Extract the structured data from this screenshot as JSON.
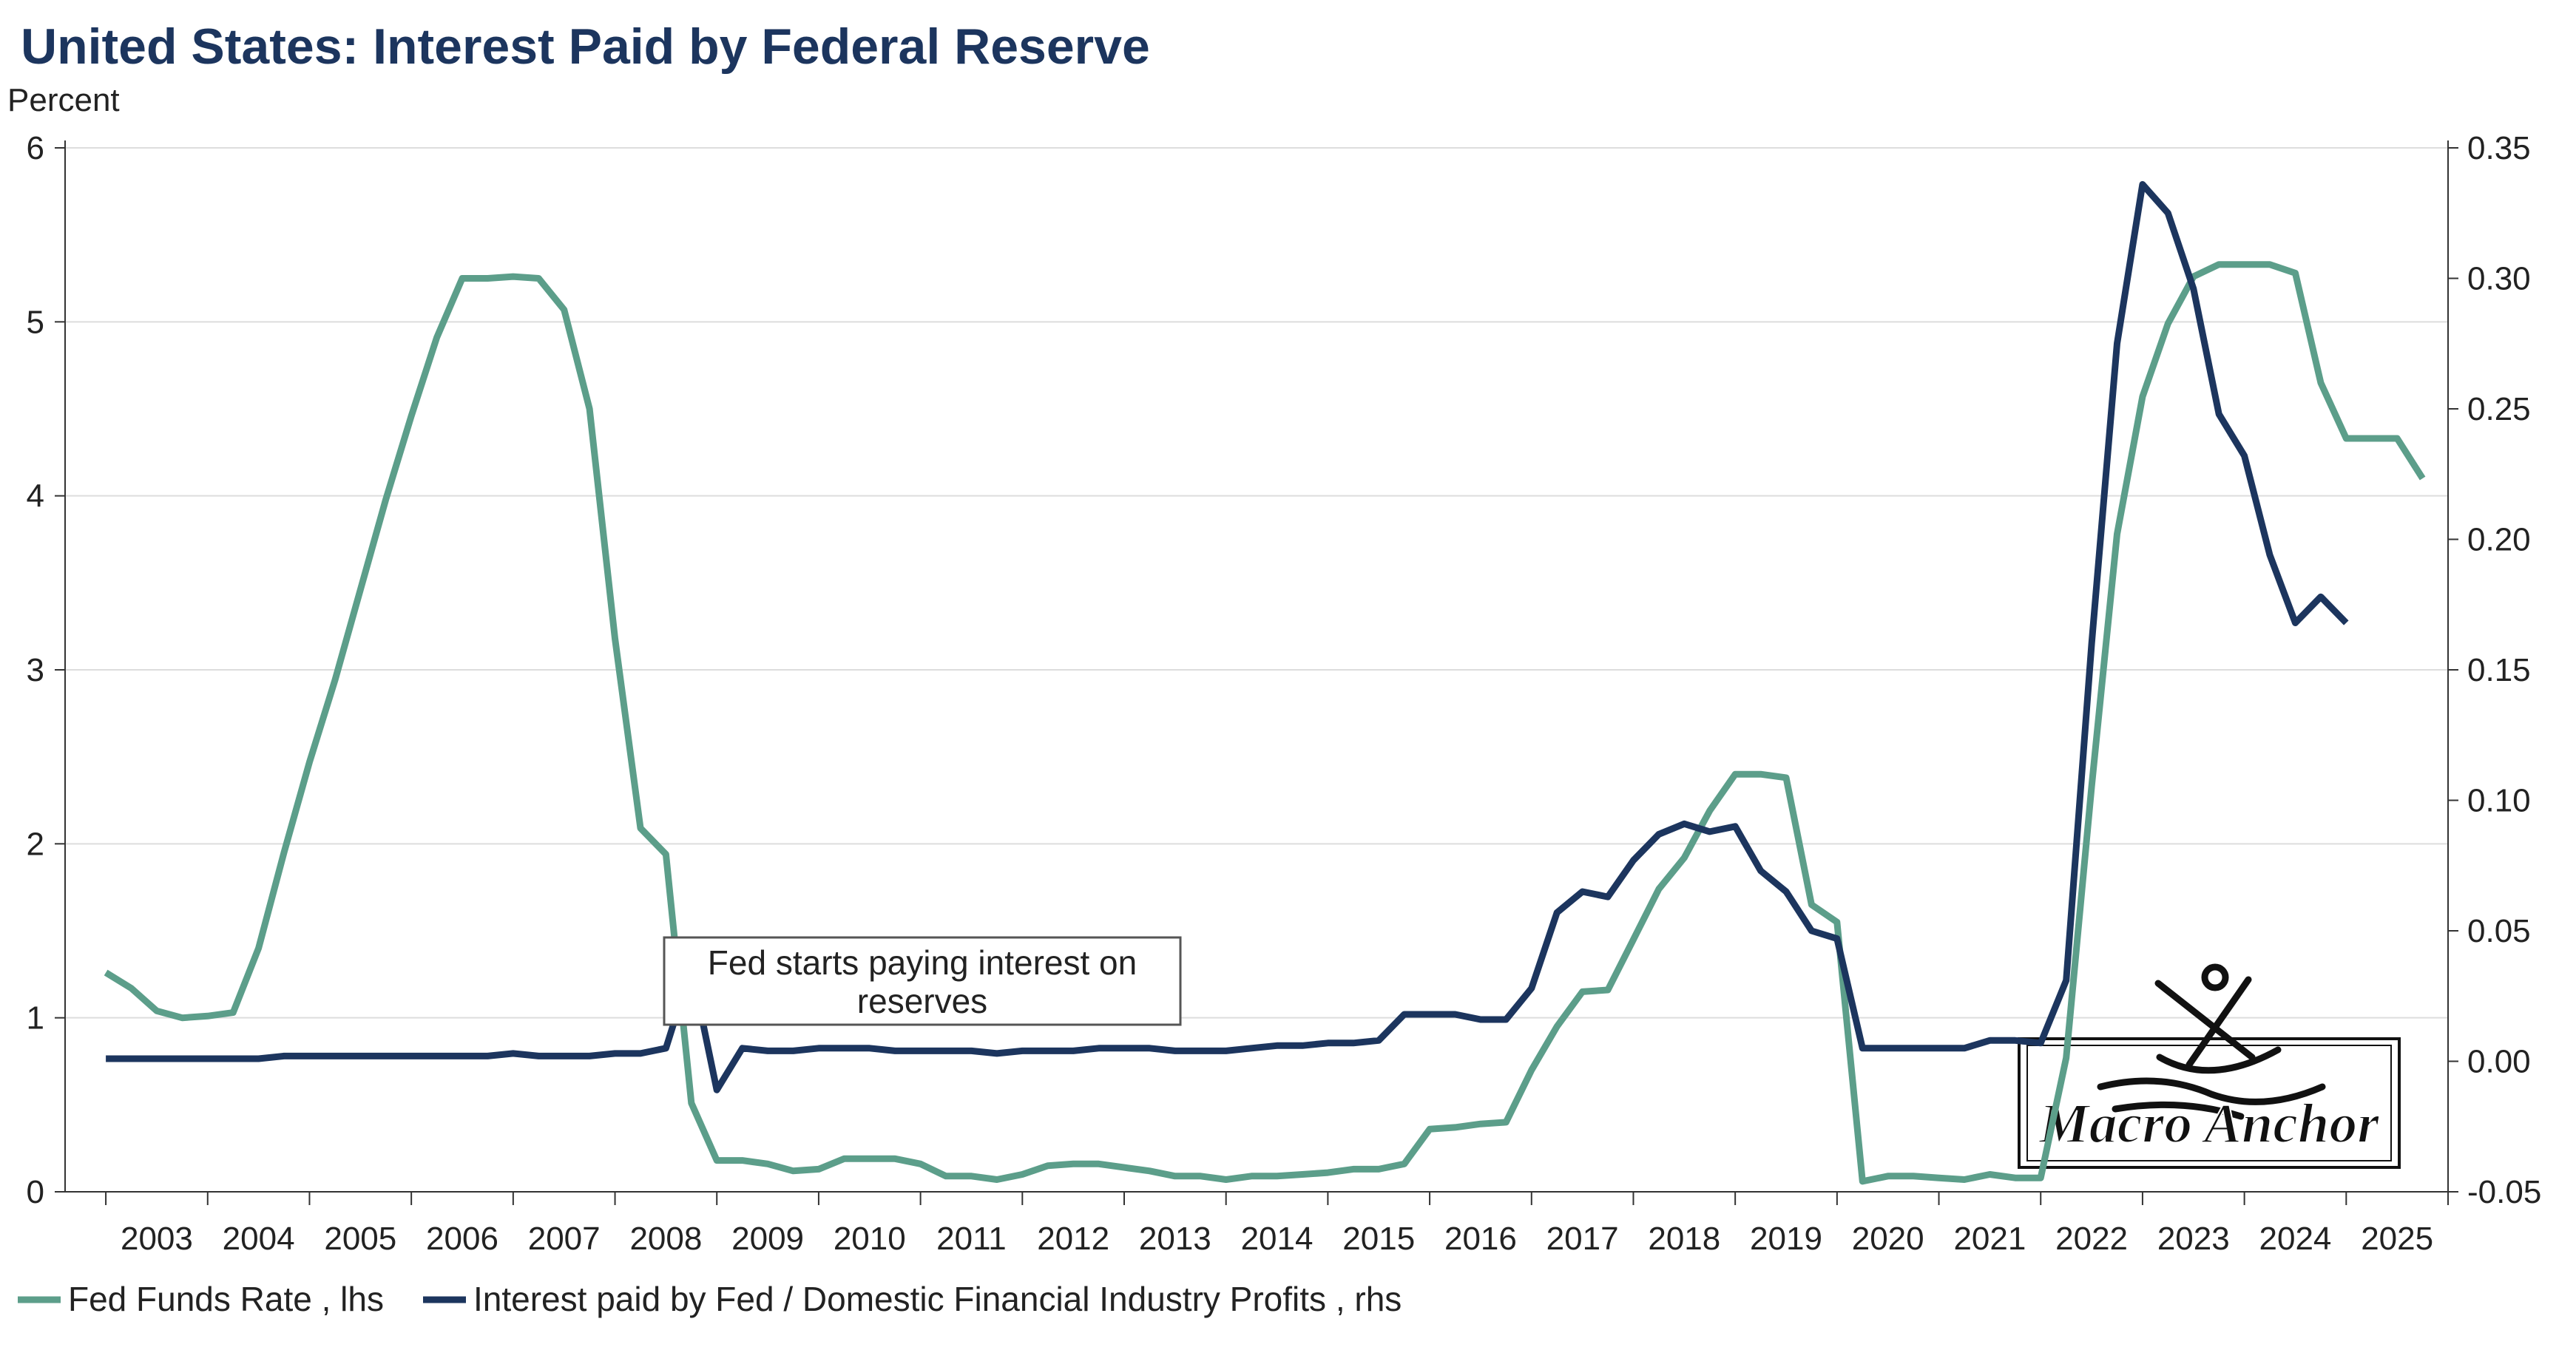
{
  "chart_data": {
    "type": "line",
    "title": "United States: Interest Paid by Federal Reserve",
    "ylabel": "Percent",
    "y_left": {
      "min": 0,
      "max": 6,
      "ticks": [
        "0",
        "1",
        "2",
        "3",
        "4",
        "5",
        "6"
      ]
    },
    "y_right": {
      "min": -0.05,
      "max": 0.35,
      "ticks": [
        "-0.05",
        "0.00",
        "0.05",
        "0.10",
        "0.15",
        "0.20",
        "0.25",
        "0.30",
        "0.35"
      ]
    },
    "x_range": [
      2002.6,
      2026.0
    ],
    "x_ticks": [
      "2003",
      "2004",
      "2005",
      "2006",
      "2007",
      "2008",
      "2009",
      "2010",
      "2011",
      "2012",
      "2013",
      "2014",
      "2015",
      "2016",
      "2017",
      "2018",
      "2019",
      "2020",
      "2021",
      "2022",
      "2023",
      "2024",
      "2025"
    ],
    "annotation": {
      "text_line1": "Fed starts paying interest on",
      "text_line2": "reserves"
    },
    "watermark": "Macro Anchor",
    "grid": "horizontal",
    "legend_position": "bottom-left",
    "series": [
      {
        "name": "Fed Funds Rate , lhs",
        "axis": "left",
        "color": "#5c9e8a",
        "points": [
          [
            2003.0,
            1.26
          ],
          [
            2003.25,
            1.17
          ],
          [
            2003.5,
            1.04
          ],
          [
            2003.75,
            1.0
          ],
          [
            2004.0,
            1.01
          ],
          [
            2004.25,
            1.03
          ],
          [
            2004.5,
            1.4
          ],
          [
            2004.75,
            1.95
          ],
          [
            2005.0,
            2.47
          ],
          [
            2005.25,
            2.94
          ],
          [
            2005.5,
            3.46
          ],
          [
            2005.75,
            3.98
          ],
          [
            2006.0,
            4.46
          ],
          [
            2006.25,
            4.91
          ],
          [
            2006.5,
            5.25
          ],
          [
            2006.75,
            5.25
          ],
          [
            2007.0,
            5.26
          ],
          [
            2007.25,
            5.25
          ],
          [
            2007.5,
            5.07
          ],
          [
            2007.75,
            4.5
          ],
          [
            2008.0,
            3.18
          ],
          [
            2008.25,
            2.09
          ],
          [
            2008.5,
            1.94
          ],
          [
            2008.75,
            0.51
          ],
          [
            2009.0,
            0.18
          ],
          [
            2009.25,
            0.18
          ],
          [
            2009.5,
            0.16
          ],
          [
            2009.75,
            0.12
          ],
          [
            2010.0,
            0.13
          ],
          [
            2010.25,
            0.19
          ],
          [
            2010.5,
            0.19
          ],
          [
            2010.75,
            0.19
          ],
          [
            2011.0,
            0.16
          ],
          [
            2011.25,
            0.09
          ],
          [
            2011.5,
            0.09
          ],
          [
            2011.75,
            0.07
          ],
          [
            2012.0,
            0.1
          ],
          [
            2012.25,
            0.15
          ],
          [
            2012.5,
            0.16
          ],
          [
            2012.75,
            0.16
          ],
          [
            2013.0,
            0.14
          ],
          [
            2013.25,
            0.12
          ],
          [
            2013.5,
            0.09
          ],
          [
            2013.75,
            0.09
          ],
          [
            2014.0,
            0.07
          ],
          [
            2014.25,
            0.09
          ],
          [
            2014.5,
            0.09
          ],
          [
            2014.75,
            0.1
          ],
          [
            2015.0,
            0.11
          ],
          [
            2015.25,
            0.13
          ],
          [
            2015.5,
            0.13
          ],
          [
            2015.75,
            0.16
          ],
          [
            2016.0,
            0.36
          ],
          [
            2016.25,
            0.37
          ],
          [
            2016.5,
            0.39
          ],
          [
            2016.75,
            0.4
          ],
          [
            2017.0,
            0.7
          ],
          [
            2017.25,
            0.95
          ],
          [
            2017.5,
            1.15
          ],
          [
            2017.75,
            1.16
          ],
          [
            2018.0,
            1.45
          ],
          [
            2018.25,
            1.74
          ],
          [
            2018.5,
            1.92
          ],
          [
            2018.75,
            2.19
          ],
          [
            2019.0,
            2.4
          ],
          [
            2019.25,
            2.4
          ],
          [
            2019.5,
            2.38
          ],
          [
            2019.75,
            1.65
          ],
          [
            2020.0,
            1.55
          ],
          [
            2020.25,
            0.06
          ],
          [
            2020.5,
            0.09
          ],
          [
            2020.75,
            0.09
          ],
          [
            2021.0,
            0.08
          ],
          [
            2021.25,
            0.07
          ],
          [
            2021.5,
            0.1
          ],
          [
            2021.75,
            0.08
          ],
          [
            2022.0,
            0.08
          ],
          [
            2022.25,
            0.77
          ],
          [
            2022.5,
            2.33
          ],
          [
            2022.75,
            3.78
          ],
          [
            2023.0,
            4.57
          ],
          [
            2023.25,
            4.99
          ],
          [
            2023.5,
            5.26
          ],
          [
            2023.75,
            5.33
          ],
          [
            2024.0,
            5.33
          ],
          [
            2024.25,
            5.33
          ],
          [
            2024.5,
            5.28
          ],
          [
            2024.75,
            4.65
          ],
          [
            2025.0,
            4.33
          ],
          [
            2025.25,
            4.33
          ],
          [
            2025.5,
            4.33
          ],
          [
            2025.75,
            4.1
          ]
        ]
      },
      {
        "name": "Interest paid by Fed / Domestic Financial Industry Profits , rhs",
        "axis": "right",
        "color": "#1c355e",
        "points": [
          [
            2003.0,
            0.001
          ],
          [
            2003.25,
            0.001
          ],
          [
            2003.5,
            0.001
          ],
          [
            2003.75,
            0.001
          ],
          [
            2004.0,
            0.001
          ],
          [
            2004.25,
            0.001
          ],
          [
            2004.5,
            0.001
          ],
          [
            2004.75,
            0.002
          ],
          [
            2005.0,
            0.002
          ],
          [
            2005.25,
            0.002
          ],
          [
            2005.5,
            0.002
          ],
          [
            2005.75,
            0.002
          ],
          [
            2006.0,
            0.002
          ],
          [
            2006.25,
            0.002
          ],
          [
            2006.5,
            0.002
          ],
          [
            2006.75,
            0.002
          ],
          [
            2007.0,
            0.003
          ],
          [
            2007.25,
            0.002
          ],
          [
            2007.5,
            0.002
          ],
          [
            2007.75,
            0.002
          ],
          [
            2008.0,
            0.003
          ],
          [
            2008.25,
            0.003
          ],
          [
            2008.5,
            0.005
          ],
          [
            2008.75,
            0.036
          ],
          [
            2009.0,
            -0.011
          ],
          [
            2009.25,
            0.005
          ],
          [
            2009.5,
            0.004
          ],
          [
            2009.75,
            0.004
          ],
          [
            2010.0,
            0.005
          ],
          [
            2010.25,
            0.005
          ],
          [
            2010.5,
            0.005
          ],
          [
            2010.75,
            0.004
          ],
          [
            2011.0,
            0.004
          ],
          [
            2011.25,
            0.004
          ],
          [
            2011.5,
            0.004
          ],
          [
            2011.75,
            0.003
          ],
          [
            2012.0,
            0.004
          ],
          [
            2012.25,
            0.004
          ],
          [
            2012.5,
            0.004
          ],
          [
            2012.75,
            0.005
          ],
          [
            2013.0,
            0.005
          ],
          [
            2013.25,
            0.005
          ],
          [
            2013.5,
            0.004
          ],
          [
            2013.75,
            0.004
          ],
          [
            2014.0,
            0.004
          ],
          [
            2014.25,
            0.005
          ],
          [
            2014.5,
            0.006
          ],
          [
            2014.75,
            0.006
          ],
          [
            2015.0,
            0.007
          ],
          [
            2015.25,
            0.007
          ],
          [
            2015.5,
            0.008
          ],
          [
            2015.75,
            0.018
          ],
          [
            2016.0,
            0.018
          ],
          [
            2016.25,
            0.018
          ],
          [
            2016.5,
            0.016
          ],
          [
            2016.75,
            0.016
          ],
          [
            2017.0,
            0.028
          ],
          [
            2017.25,
            0.057
          ],
          [
            2017.5,
            0.065
          ],
          [
            2017.75,
            0.063
          ],
          [
            2018.0,
            0.077
          ],
          [
            2018.25,
            0.087
          ],
          [
            2018.5,
            0.091
          ],
          [
            2018.75,
            0.088
          ],
          [
            2019.0,
            0.09
          ],
          [
            2019.25,
            0.073
          ],
          [
            2019.5,
            0.065
          ],
          [
            2019.75,
            0.05
          ],
          [
            2020.0,
            0.047
          ],
          [
            2020.25,
            0.005
          ],
          [
            2020.5,
            0.005
          ],
          [
            2020.75,
            0.005
          ],
          [
            2021.0,
            0.005
          ],
          [
            2021.25,
            0.005
          ],
          [
            2021.5,
            0.008
          ],
          [
            2021.75,
            0.008
          ],
          [
            2022.0,
            0.007
          ],
          [
            2022.25,
            0.031
          ],
          [
            2022.5,
            0.16
          ],
          [
            2022.75,
            0.275
          ],
          [
            2023.0,
            0.336
          ],
          [
            2023.25,
            0.325
          ],
          [
            2023.5,
            0.296
          ],
          [
            2023.75,
            0.248
          ],
          [
            2024.0,
            0.232
          ],
          [
            2024.25,
            0.194
          ],
          [
            2024.5,
            0.168
          ],
          [
            2024.75,
            0.178
          ],
          [
            2025.0,
            0.168
          ]
        ]
      }
    ]
  }
}
